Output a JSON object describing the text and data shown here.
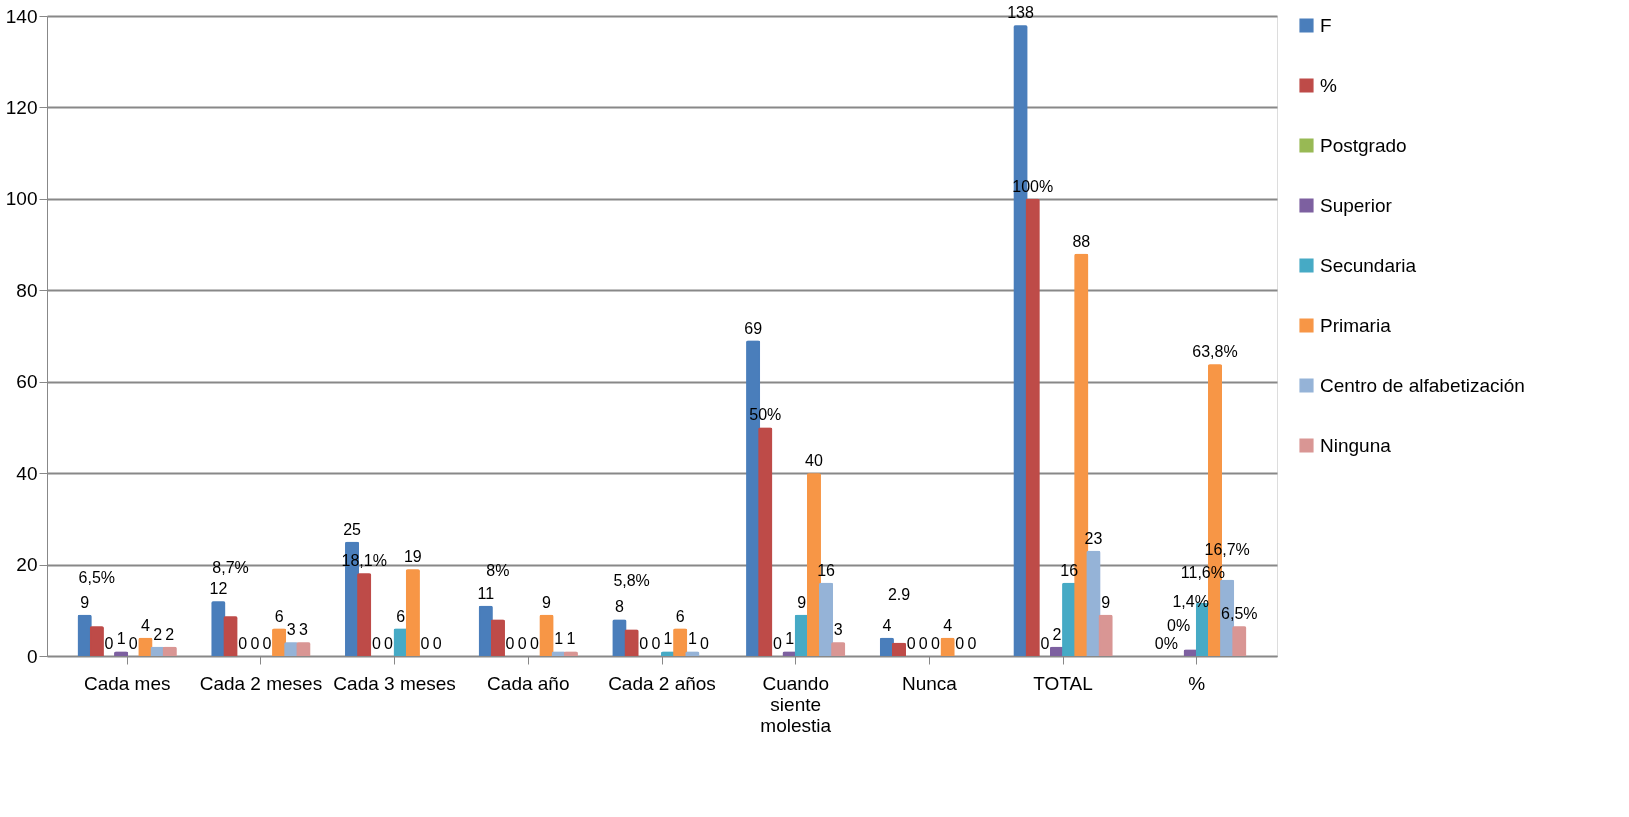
{
  "chart_data": {
    "type": "bar",
    "categories": [
      "Cada mes",
      "Cada 2 meses",
      "Cada 3 meses",
      "Cada año",
      "Cada 2 años",
      "Cuando siente molestia",
      "Nunca",
      "TOTAL",
      "%"
    ],
    "series": [
      {
        "name": "F",
        "color": "#4a7ebb",
        "values": [
          9,
          12,
          25,
          11,
          8,
          69,
          4,
          138,
          null
        ],
        "value_labels": [
          "9",
          "12",
          "25",
          "11",
          "8",
          "69",
          "4",
          "138",
          null
        ]
      },
      {
        "name": "%",
        "color": "#be4b48",
        "values": [
          6.5,
          8.7,
          18.1,
          8,
          5.8,
          50,
          2.9,
          100,
          0
        ],
        "value_labels": [
          "6,5%",
          "8,7%",
          "18,1%",
          "8%",
          "5,8%",
          "50%",
          "2.9",
          "100%",
          "0%"
        ]
      },
      {
        "name": "Postgrado",
        "color": "#98b954",
        "values": [
          0,
          0,
          0,
          0,
          0,
          0,
          0,
          0,
          0
        ],
        "value_labels": [
          "0",
          "0",
          "0",
          "0",
          "0",
          "0",
          "0",
          "0",
          "0%"
        ]
      },
      {
        "name": "Superior",
        "color": "#7d60a0",
        "values": [
          1,
          0,
          0,
          0,
          0,
          1,
          0,
          2,
          1.4
        ],
        "value_labels": [
          "1",
          "0",
          "0",
          "0",
          "0",
          "1",
          "0",
          "2",
          "1,4%"
        ]
      },
      {
        "name": "Secundaria",
        "color": "#46aac5",
        "values": [
          0,
          0,
          6,
          0,
          1,
          9,
          0,
          16,
          11.6
        ],
        "value_labels": [
          "0",
          "0",
          "6",
          "0",
          "1",
          "9",
          "0",
          "16",
          "11,6%"
        ]
      },
      {
        "name": "Primaria",
        "color": "#f79646",
        "values": [
          4,
          6,
          19,
          9,
          6,
          40,
          4,
          88,
          63.8
        ],
        "value_labels": [
          "4",
          "6",
          "19",
          "9",
          "6",
          "40",
          "4",
          "88",
          "63,8%"
        ]
      },
      {
        "name": "Centro de alfabetización",
        "color": "#95b3d7",
        "values": [
          2,
          3,
          0,
          1,
          1,
          16,
          0,
          23,
          16.7
        ],
        "value_labels": [
          "2",
          "3",
          "0",
          "1",
          "1",
          "16",
          "0",
          "23",
          "16,7%"
        ]
      },
      {
        "name": "Ninguna",
        "color": "#d99694",
        "values": [
          2,
          3,
          0,
          1,
          0,
          3,
          0,
          9,
          6.5
        ],
        "value_labels": [
          "2",
          "3",
          "0",
          "1",
          "0",
          "3",
          "0",
          "9",
          "6,5%"
        ]
      }
    ],
    "ylim": [
      0,
      140
    ],
    "yticks": [
      0,
      20,
      40,
      60,
      80,
      100,
      120,
      140
    ],
    "grid": "y",
    "legend": "right"
  }
}
